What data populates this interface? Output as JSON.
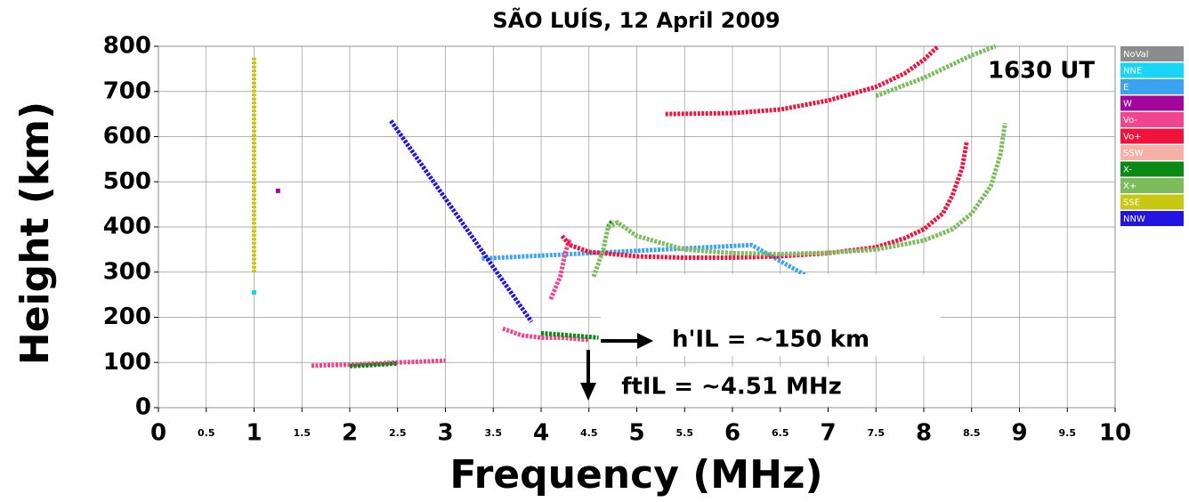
{
  "chart_data": {
    "type": "scatter",
    "title": "SÃO LUÍS, 12 April 2009",
    "x_label": "Frequency (MHz)",
    "y_label": "Height (km)",
    "annotations": [
      "1630 UT",
      "h'IL = ~150 km",
      "ftIL = ~4.51 MHz"
    ],
    "xlim": [
      0,
      10
    ],
    "ylim": [
      0,
      800
    ],
    "xticks": [
      0,
      0.5,
      1,
      1.5,
      2,
      2.5,
      3,
      3.5,
      4,
      4.5,
      5,
      5.5,
      6,
      6.5,
      7,
      7.5,
      8,
      8.5,
      9,
      9.5,
      10
    ],
    "yticks": [
      0,
      100,
      200,
      300,
      400,
      500,
      600,
      700,
      800
    ],
    "grid": true,
    "legend": "right",
    "series": [
      {
        "name": "NoVal",
        "color": "#8c8c8c",
        "x": [],
        "y": []
      },
      {
        "name": "NNE",
        "color": "#19d5f5",
        "x": [
          1.0
        ],
        "y": [
          255
        ]
      },
      {
        "name": "E",
        "color": "#3aa4f0",
        "x": [
          3.38,
          6.2,
          7.28
        ],
        "y": [
          330,
          360,
          232
        ]
      },
      {
        "name": "W",
        "color": "#a4069c",
        "x": [
          1.25
        ],
        "y": [
          480
        ]
      },
      {
        "name": "Vo-",
        "color": "#f0448f",
        "x": [
          1.6,
          2.0,
          2.5,
          3.0,
          null,
          3.6,
          3.8,
          4.0,
          4.2,
          4.5,
          null,
          4.1,
          4.2,
          4.25,
          4.3
        ],
        "y": [
          93,
          95,
          100,
          104,
          null,
          175,
          160,
          155,
          155,
          150,
          null,
          240,
          290,
          340,
          375
        ]
      },
      {
        "name": "Vo+",
        "color": "#f0133e",
        "x": [
          4.22,
          4.3,
          4.5,
          5.0,
          5.5,
          6.0,
          6.5,
          7.0,
          7.5,
          7.8,
          8.0,
          8.2,
          8.3,
          8.4,
          8.45,
          null,
          5.3,
          6.0,
          6.5,
          7.0,
          7.5,
          7.8,
          8.0,
          8.15
        ],
        "y": [
          380,
          360,
          345,
          335,
          332,
          332,
          335,
          342,
          355,
          375,
          395,
          430,
          470,
          530,
          590,
          null,
          650,
          652,
          660,
          680,
          710,
          740,
          770,
          800
        ]
      },
      {
        "name": "SSW",
        "color": "#f5b0a8",
        "x": [],
        "y": []
      },
      {
        "name": "X-",
        "color": "#0a8a14",
        "x": [
          2.0,
          2.3,
          2.5,
          null,
          4.0,
          4.3,
          4.6,
          null,
          4.7,
          4.75
        ],
        "y": [
          92,
          95,
          98,
          null,
          165,
          160,
          155,
          null,
          400,
          415
        ]
      },
      {
        "name": "X+",
        "color": "#7cbc5c",
        "x": [
          4.55,
          4.65,
          4.7,
          4.8,
          5.0,
          5.5,
          6.0,
          6.5,
          7.0,
          7.5,
          8.0,
          8.3,
          8.5,
          8.7,
          8.8,
          8.85,
          null,
          7.5,
          8.0,
          8.5,
          8.75
        ],
        "y": [
          290,
          350,
          400,
          410,
          380,
          350,
          342,
          340,
          343,
          350,
          370,
          395,
          430,
          490,
          560,
          630,
          null,
          690,
          730,
          780,
          800
        ]
      },
      {
        "name": "SSE",
        "color": "#c8c814",
        "x": [
          1.0,
          1.0
        ],
        "y": [
          775,
          298
        ]
      },
      {
        "name": "NNW",
        "color": "#2414e0",
        "x": [
          2.43,
          3.9
        ],
        "y": [
          635,
          190
        ]
      }
    ]
  }
}
